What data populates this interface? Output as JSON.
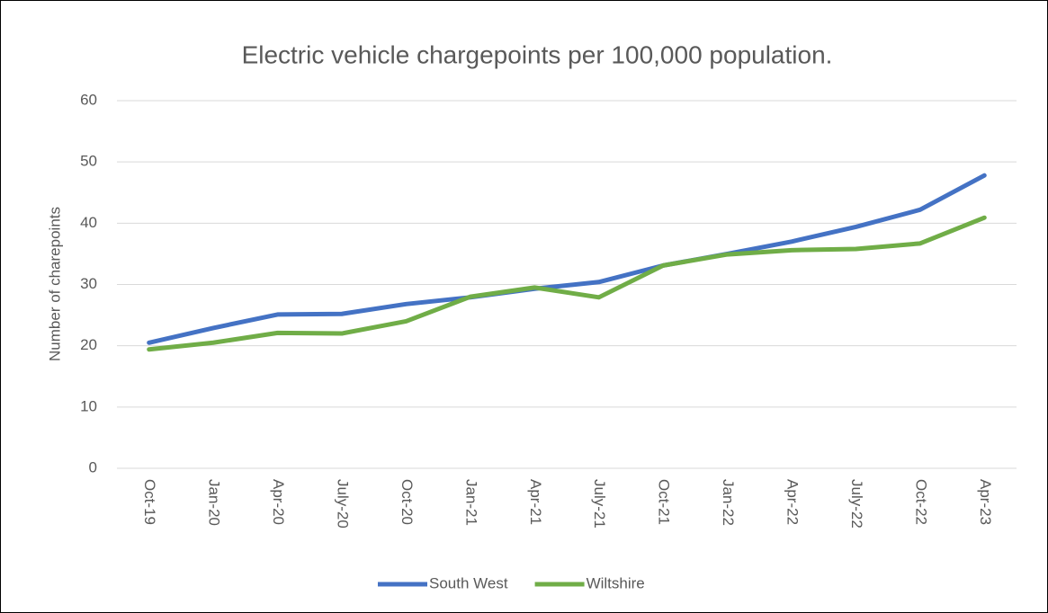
{
  "chart_data": {
    "type": "line",
    "title": "Electric vehicle chargepoints per 100,000 population.",
    "y_label": "Number of charepoints",
    "categories": [
      "Oct-19",
      "Jan-20",
      "Apr-20",
      "July-20",
      "Oct-20",
      "Jan-21",
      "Apr-21",
      "July-21",
      "Oct-21",
      "Jan-22",
      "Apr-22",
      "July-22",
      "Oct-22",
      "Apr-23"
    ],
    "series": [
      {
        "name": "South West",
        "color": "#4472c4",
        "values": [
          20.5,
          22.9,
          25.1,
          25.2,
          26.8,
          27.9,
          29.3,
          30.4,
          33.1,
          35.0,
          37.0,
          39.4,
          42.2,
          47.8
        ]
      },
      {
        "name": "Wiltshire",
        "color": "#70ad47",
        "values": [
          19.4,
          20.5,
          22.1,
          22.0,
          24.0,
          28.0,
          29.5,
          27.9,
          33.1,
          34.9,
          35.6,
          35.8,
          36.7,
          40.9
        ]
      }
    ],
    "ylim": [
      0,
      60
    ],
    "yticks": [
      0,
      10,
      20,
      30,
      40,
      50,
      60
    ],
    "grid": true,
    "legend": "bottom"
  }
}
